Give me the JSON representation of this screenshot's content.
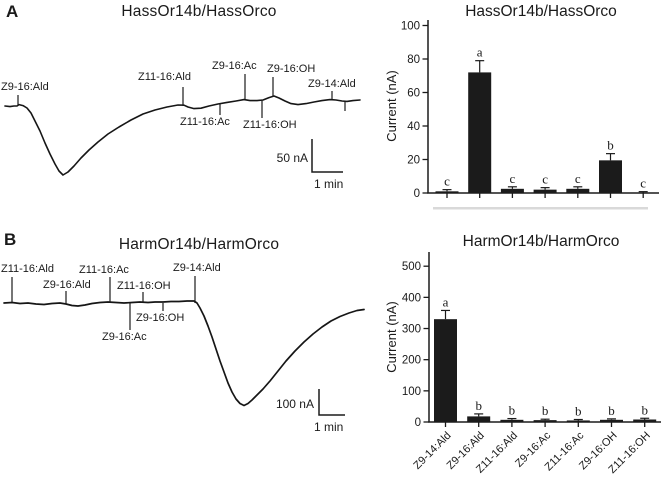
{
  "panelA": {
    "label": "A",
    "title": "HassOr14b/HassOrco",
    "stimuli": [
      "Z9-16:Ald",
      "Z11-16:Ald",
      "Z11-16:Ac",
      "Z9-16:Ac",
      "Z11-16:OH",
      "Z9-16:OH",
      "Z9-14:Ald"
    ],
    "scalebar": {
      "current": "50 nA",
      "time": "1 min"
    }
  },
  "panelB": {
    "label": "B",
    "title": "HarmOr14b/HarmOrco",
    "stimuli": [
      "Z11-16:Ald",
      "Z9-16:Ald",
      "Z11-16:Ac",
      "Z11-16:OH",
      "Z9-14:Ald",
      "Z9-16:OH",
      "Z9-16:Ac"
    ],
    "scalebar": {
      "current": "100 nA",
      "time": "1 min"
    }
  },
  "chart_data": [
    {
      "type": "bar",
      "title": "HassOr14b/HassOrco",
      "ylabel": "Current (nA)",
      "ylim": [
        0,
        100
      ],
      "yticks": [
        0,
        20,
        40,
        60,
        80,
        100
      ],
      "categories": [
        "",
        "",
        "",
        "",
        "",
        "",
        ""
      ],
      "values": [
        1,
        72,
        2.5,
        2,
        2.5,
        19.5,
        0.3
      ],
      "errors": [
        1,
        7,
        1.2,
        1.2,
        1.2,
        4,
        0.5
      ],
      "sig_letters": [
        "c",
        "a",
        "c",
        "c",
        "c",
        "b",
        "c"
      ],
      "x_tick_labels_visible": false,
      "bar_color": "#1b1b1b",
      "legend": "none",
      "grid": false
    },
    {
      "type": "bar",
      "title": "HarmOr14b/HarmOrco",
      "ylabel": "Current (nA)",
      "ylim": [
        0,
        500
      ],
      "yticks": [
        0,
        100,
        200,
        300,
        400,
        500
      ],
      "categories": [
        "Z9-14:Ald",
        "Z9-16:Ald",
        "Z11-16:Ald",
        "Z9-16:Ac",
        "Z11-16:Ac",
        "Z9-16:OH",
        "Z11-16:OH"
      ],
      "values": [
        330,
        18,
        7,
        6,
        5,
        7,
        8
      ],
      "errors": [
        28,
        8,
        4,
        3,
        3,
        3,
        4
      ],
      "sig_letters": [
        "a",
        "b",
        "b",
        "b",
        "b",
        "b",
        "b"
      ],
      "x_tick_labels_visible": true,
      "bar_color": "#1b1b1b",
      "legend": "none",
      "grid": false
    }
  ]
}
